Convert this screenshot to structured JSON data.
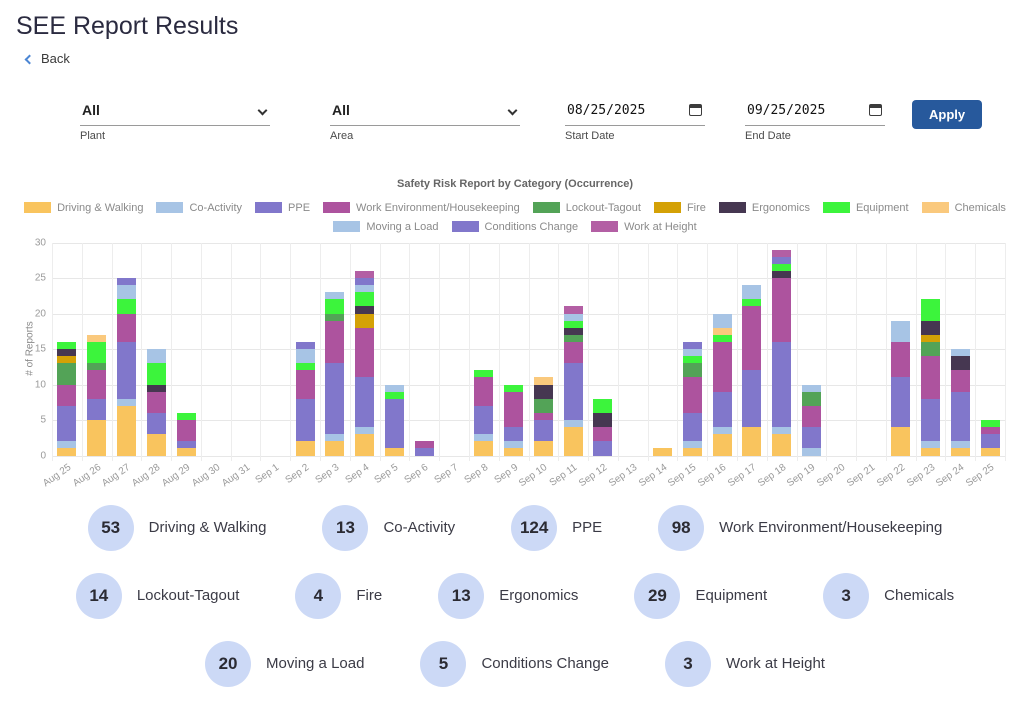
{
  "page": {
    "title": "SEE Report Results",
    "back_label": "Back"
  },
  "filters": {
    "plant": {
      "label": "Plant",
      "value": "All"
    },
    "area": {
      "label": "Area",
      "value": "All"
    },
    "start_date": {
      "label": "Start Date",
      "value": "08/25/2025"
    },
    "end_date": {
      "label": "End Date",
      "value": "09/25/2025"
    },
    "apply_label": "Apply"
  },
  "chart_data": {
    "type": "bar",
    "stacked": true,
    "title": "Safety Risk Report by Category (Occurrence)",
    "ylabel": "# of Reports",
    "ylim": [
      0,
      30
    ],
    "yticks": [
      0,
      5,
      10,
      15,
      20,
      25,
      30
    ],
    "grid": true,
    "legend_position": "top",
    "categories": [
      "Aug 25",
      "Aug 26",
      "Aug 27",
      "Aug 28",
      "Aug 29",
      "Aug 30",
      "Aug 31",
      "Sep 1",
      "Sep 2",
      "Sep 3",
      "Sep 4",
      "Sep 5",
      "Sep 6",
      "Sep 7",
      "Sep 8",
      "Sep 9",
      "Sep 10",
      "Sep 11",
      "Sep 12",
      "Sep 13",
      "Sep 14",
      "Sep 15",
      "Sep 16",
      "Sep 17",
      "Sep 18",
      "Sep 19",
      "Sep 20",
      "Sep 21",
      "Sep 22",
      "Sep 23",
      "Sep 24",
      "Sep 25"
    ],
    "series": [
      {
        "name": "Driving & Walking",
        "color": "#f9c45e",
        "values": [
          1,
          5,
          7,
          3,
          1,
          0,
          0,
          0,
          2,
          2,
          3,
          1,
          0,
          0,
          2,
          1,
          2,
          4,
          0,
          0,
          1,
          1,
          3,
          4,
          3,
          0,
          0,
          0,
          4,
          1,
          1,
          1
        ]
      },
      {
        "name": "Co-Activity",
        "color": "#a7c4e5",
        "values": [
          1,
          0,
          1,
          0,
          0,
          0,
          0,
          0,
          0,
          1,
          1,
          0,
          0,
          0,
          1,
          1,
          0,
          1,
          0,
          0,
          0,
          1,
          1,
          0,
          1,
          1,
          0,
          0,
          0,
          1,
          1,
          0
        ]
      },
      {
        "name": "PPE",
        "color": "#8177cb",
        "values": [
          5,
          3,
          8,
          3,
          1,
          0,
          0,
          0,
          6,
          10,
          7,
          7,
          1,
          0,
          4,
          2,
          3,
          8,
          2,
          0,
          0,
          4,
          5,
          8,
          12,
          3,
          0,
          0,
          7,
          6,
          7,
          2
        ]
      },
      {
        "name": "Work Environment/Housekeeping",
        "color": "#ad539e",
        "values": [
          3,
          4,
          4,
          3,
          3,
          0,
          0,
          0,
          4,
          6,
          7,
          0,
          1,
          0,
          4,
          5,
          1,
          3,
          2,
          0,
          0,
          5,
          7,
          9,
          9,
          3,
          0,
          0,
          5,
          6,
          3,
          1
        ]
      },
      {
        "name": "Lockout-Tagout",
        "color": "#53a357",
        "values": [
          3,
          1,
          0,
          0,
          0,
          0,
          0,
          0,
          0,
          1,
          0,
          0,
          0,
          0,
          0,
          0,
          2,
          1,
          0,
          0,
          0,
          2,
          0,
          0,
          0,
          2,
          0,
          0,
          0,
          2,
          0,
          0
        ]
      },
      {
        "name": "Fire",
        "color": "#d4a106",
        "values": [
          1,
          0,
          0,
          0,
          0,
          0,
          0,
          0,
          0,
          0,
          2,
          0,
          0,
          0,
          0,
          0,
          0,
          0,
          0,
          0,
          0,
          0,
          0,
          0,
          0,
          0,
          0,
          0,
          0,
          1,
          0,
          0
        ]
      },
      {
        "name": "Ergonomics",
        "color": "#463751",
        "values": [
          1,
          0,
          0,
          1,
          0,
          0,
          0,
          0,
          0,
          0,
          1,
          0,
          0,
          0,
          0,
          0,
          2,
          1,
          2,
          0,
          0,
          0,
          0,
          0,
          1,
          0,
          0,
          0,
          0,
          2,
          2,
          0
        ]
      },
      {
        "name": "Equipment",
        "color": "#3cf43c",
        "values": [
          1,
          3,
          2,
          3,
          1,
          0,
          0,
          0,
          1,
          2,
          2,
          1,
          0,
          0,
          1,
          1,
          0,
          1,
          2,
          0,
          0,
          1,
          1,
          1,
          1,
          0,
          0,
          0,
          0,
          3,
          0,
          1
        ]
      },
      {
        "name": "Chemicals",
        "color": "#fac97d",
        "values": [
          0,
          1,
          0,
          0,
          0,
          0,
          0,
          0,
          0,
          0,
          0,
          0,
          0,
          0,
          0,
          0,
          1,
          0,
          0,
          0,
          0,
          0,
          1,
          0,
          0,
          0,
          0,
          0,
          0,
          0,
          0,
          0
        ]
      },
      {
        "name": "Moving a Load",
        "color": "#a7c4e5",
        "values": [
          0,
          0,
          2,
          2,
          0,
          0,
          0,
          0,
          2,
          1,
          1,
          1,
          0,
          0,
          0,
          0,
          0,
          1,
          0,
          0,
          0,
          1,
          2,
          2,
          0,
          1,
          0,
          0,
          3,
          0,
          1,
          0
        ]
      },
      {
        "name": "Conditions Change",
        "color": "#8177cb",
        "values": [
          0,
          0,
          1,
          0,
          0,
          0,
          0,
          0,
          1,
          0,
          1,
          0,
          0,
          0,
          0,
          0,
          0,
          0,
          0,
          0,
          0,
          1,
          0,
          0,
          1,
          0,
          0,
          0,
          0,
          0,
          0,
          0
        ]
      },
      {
        "name": "Work at Height",
        "color": "#b35fa4",
        "values": [
          0,
          0,
          0,
          0,
          0,
          0,
          0,
          0,
          0,
          0,
          1,
          0,
          0,
          0,
          0,
          0,
          0,
          1,
          0,
          0,
          0,
          0,
          0,
          0,
          1,
          0,
          0,
          0,
          0,
          0,
          0,
          0
        ]
      }
    ],
    "legend_rows": [
      [
        "Driving & Walking",
        "Co-Activity",
        "PPE",
        "Work Environment/Housekeeping",
        "Lockout-Tagout",
        "Fire",
        "Ergonomics",
        "Equipment",
        "Chemicals"
      ],
      [
        "Moving a Load",
        "Conditions Change",
        "Work at Height"
      ]
    ]
  },
  "summary": {
    "rows": [
      [
        {
          "count": "53",
          "label": "Driving & Walking"
        },
        {
          "count": "13",
          "label": "Co-Activity"
        },
        {
          "count": "124",
          "label": "PPE"
        },
        {
          "count": "98",
          "label": "Work Environment/Housekeeping"
        }
      ],
      [
        {
          "count": "14",
          "label": "Lockout-Tagout"
        },
        {
          "count": "4",
          "label": "Fire"
        },
        {
          "count": "13",
          "label": "Ergonomics"
        },
        {
          "count": "29",
          "label": "Equipment"
        },
        {
          "count": "3",
          "label": "Chemicals"
        }
      ],
      [
        {
          "count": "20",
          "label": "Moving a Load"
        },
        {
          "count": "5",
          "label": "Conditions Change"
        },
        {
          "count": "3",
          "label": "Work at Height"
        }
      ]
    ]
  }
}
